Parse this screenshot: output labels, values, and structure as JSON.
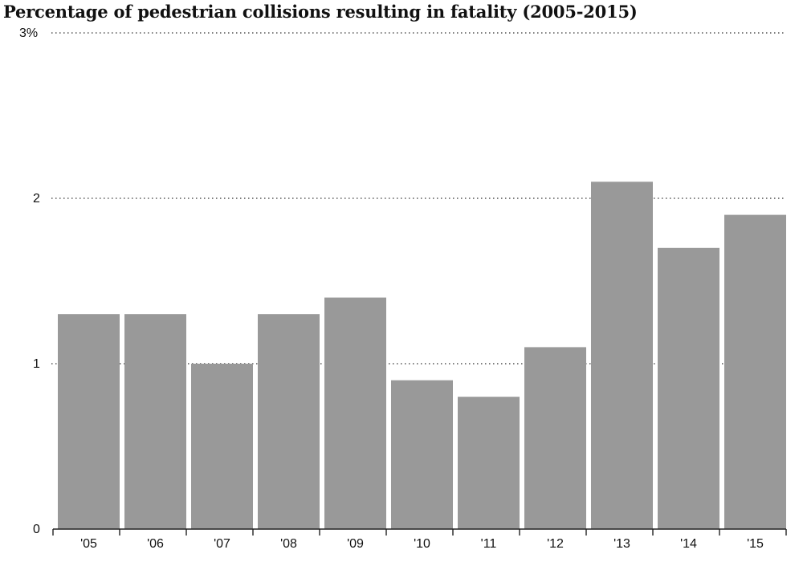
{
  "chart_data": {
    "type": "bar",
    "title": "Percentage of pedestrian collisions resulting in fatality (2005-2015)",
    "xlabel": "",
    "ylabel": "",
    "categories": [
      "'05",
      "'06",
      "'07",
      "'08",
      "'09",
      "'10",
      "'11",
      "'12",
      "'13",
      "'14",
      "'15"
    ],
    "values": [
      1.3,
      1.3,
      1.0,
      1.3,
      1.4,
      0.9,
      0.8,
      1.1,
      2.1,
      1.7,
      1.9
    ],
    "ylim": [
      0,
      3
    ],
    "y_ticks": [
      {
        "value": 0,
        "label": "0"
      },
      {
        "value": 1,
        "label": "1"
      },
      {
        "value": 2,
        "label": "2"
      },
      {
        "value": 3,
        "label": "3%"
      }
    ],
    "grid": true,
    "grid_style": "dotted",
    "bar_color": "#999999",
    "axis_color": "#222222",
    "grid_color": "#555555"
  }
}
